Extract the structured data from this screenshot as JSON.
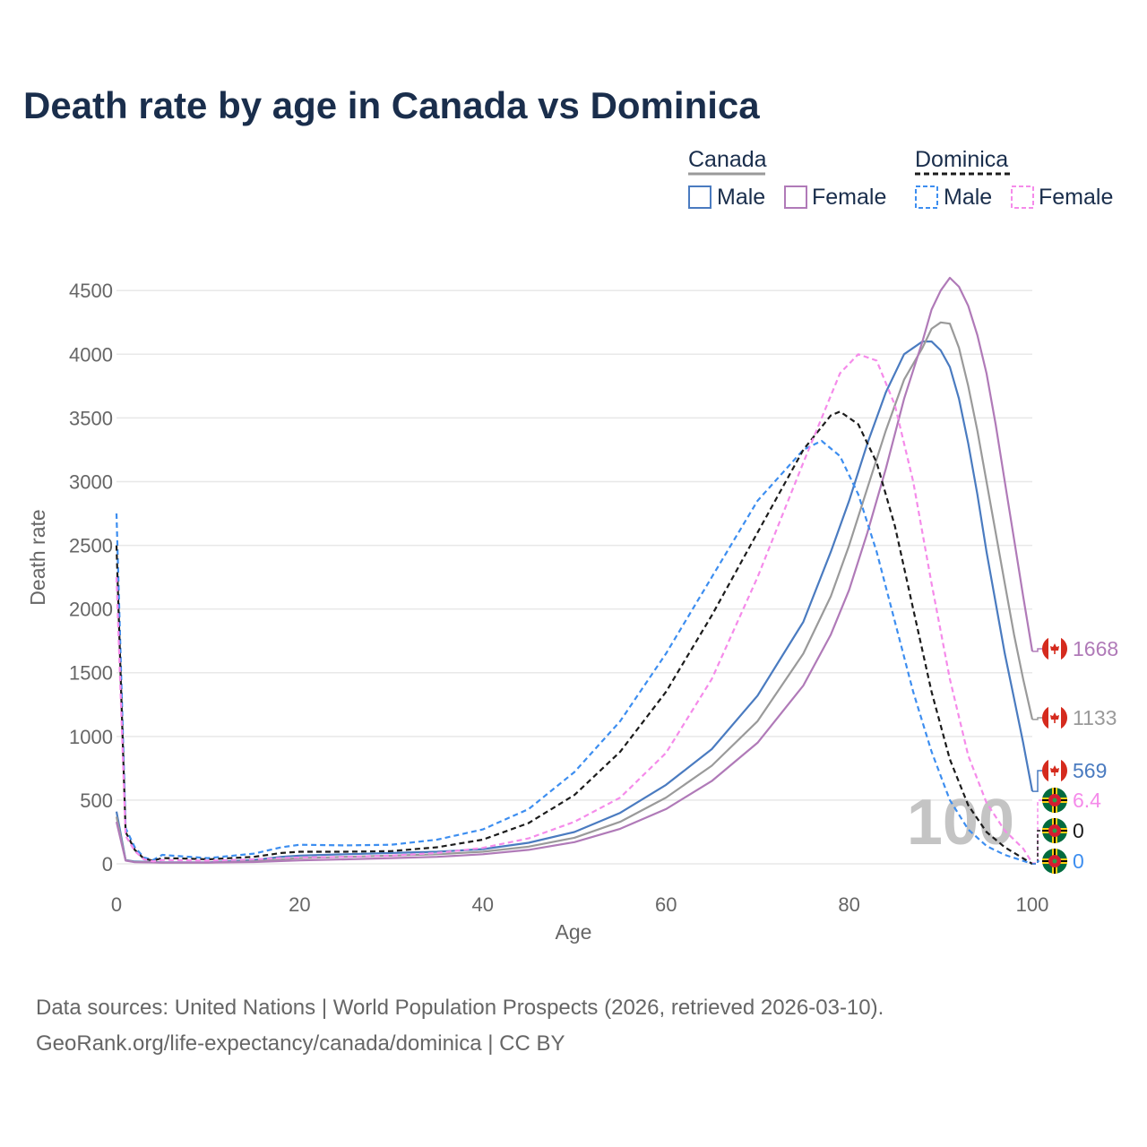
{
  "colors": {
    "canada_male": "#4a7bc0",
    "canada_female": "#b07ab8",
    "canada_total": "#9a9a9a",
    "dominica_male": "#3d8ef0",
    "dominica_female": "#f58bea",
    "dominica_total": "#1c1c1c",
    "grid": "#e8e8e8",
    "title": "#1a2e4c"
  },
  "legend": {
    "canada_label": "Canada",
    "dominica_label": "Dominica",
    "male_label": "Male",
    "female_label": "Female"
  },
  "watermark": "100",
  "source_line1": "Data sources: United Nations | World Population Prospects (2026, retrieved 2026-03-10).",
  "source_line2": "GeoRank.org/life-expectancy/canada/dominica | CC BY",
  "end_labels": [
    {
      "series": "Canada Female",
      "country": "canada",
      "text": "1668",
      "color": "#b07ab8"
    },
    {
      "series": "Canada Total",
      "country": "canada",
      "text": "1133",
      "color": "#9a9a9a"
    },
    {
      "series": "Canada Male",
      "country": "canada",
      "text": "569",
      "color": "#4a7bc0"
    },
    {
      "series": "Dominica Female",
      "country": "dominica",
      "text": "6.4",
      "color": "#f58bea"
    },
    {
      "series": "Dominica Total",
      "country": "dominica",
      "text": "0",
      "color": "#1c1c1c"
    },
    {
      "series": "Dominica Male",
      "country": "dominica",
      "text": "0",
      "color": "#3d8ef0"
    }
  ],
  "chart_data": {
    "type": "line",
    "title": "Death rate by age in Canada vs Dominica",
    "xlabel": "Age",
    "ylabel": "Death rate",
    "xlim": [
      0,
      100
    ],
    "ylim": [
      0,
      4600
    ],
    "x_ticks": [
      0,
      20,
      40,
      60,
      80,
      100
    ],
    "y_ticks": [
      0,
      500,
      1000,
      1500,
      2000,
      2500,
      3000,
      3500,
      4000,
      4500
    ],
    "series": [
      {
        "name": "Canada Male",
        "color": "#4a7bc0",
        "dash": false,
        "points": [
          [
            0,
            410
          ],
          [
            1,
            30
          ],
          [
            2,
            18
          ],
          [
            5,
            12
          ],
          [
            10,
            12
          ],
          [
            15,
            30
          ],
          [
            18,
            55
          ],
          [
            20,
            65
          ],
          [
            25,
            75
          ],
          [
            30,
            85
          ],
          [
            35,
            95
          ],
          [
            40,
            115
          ],
          [
            45,
            165
          ],
          [
            50,
            250
          ],
          [
            55,
            400
          ],
          [
            60,
            620
          ],
          [
            65,
            900
          ],
          [
            70,
            1320
          ],
          [
            75,
            1900
          ],
          [
            78,
            2450
          ],
          [
            80,
            2850
          ],
          [
            82,
            3300
          ],
          [
            84,
            3700
          ],
          [
            86,
            4000
          ],
          [
            88,
            4100
          ],
          [
            89,
            4100
          ],
          [
            90,
            4030
          ],
          [
            91,
            3900
          ],
          [
            92,
            3650
          ],
          [
            93,
            3300
          ],
          [
            94,
            2900
          ],
          [
            95,
            2450
          ],
          [
            96,
            2050
          ],
          [
            97,
            1650
          ],
          [
            98,
            1300
          ],
          [
            99,
            950
          ],
          [
            100,
            569
          ]
        ]
      },
      {
        "name": "Canada Total",
        "color": "#9a9a9a",
        "dash": false,
        "points": [
          [
            0,
            370
          ],
          [
            1,
            28
          ],
          [
            2,
            15
          ],
          [
            5,
            10
          ],
          [
            10,
            10
          ],
          [
            15,
            20
          ],
          [
            18,
            35
          ],
          [
            20,
            45
          ],
          [
            25,
            55
          ],
          [
            30,
            65
          ],
          [
            35,
            75
          ],
          [
            40,
            95
          ],
          [
            45,
            135
          ],
          [
            50,
            205
          ],
          [
            55,
            330
          ],
          [
            60,
            520
          ],
          [
            65,
            770
          ],
          [
            70,
            1120
          ],
          [
            75,
            1650
          ],
          [
            78,
            2100
          ],
          [
            80,
            2500
          ],
          [
            82,
            2950
          ],
          [
            84,
            3400
          ],
          [
            86,
            3800
          ],
          [
            88,
            4050
          ],
          [
            89,
            4200
          ],
          [
            90,
            4250
          ],
          [
            91,
            4240
          ],
          [
            92,
            4050
          ],
          [
            93,
            3750
          ],
          [
            94,
            3400
          ],
          [
            95,
            3000
          ],
          [
            96,
            2600
          ],
          [
            97,
            2200
          ],
          [
            98,
            1800
          ],
          [
            99,
            1450
          ],
          [
            100,
            1133
          ]
        ]
      },
      {
        "name": "Canada Female",
        "color": "#b07ab8",
        "dash": false,
        "points": [
          [
            0,
            330
          ],
          [
            1,
            25
          ],
          [
            2,
            13
          ],
          [
            5,
            9
          ],
          [
            10,
            9
          ],
          [
            15,
            14
          ],
          [
            18,
            22
          ],
          [
            20,
            27
          ],
          [
            25,
            35
          ],
          [
            30,
            45
          ],
          [
            35,
            55
          ],
          [
            40,
            75
          ],
          [
            45,
            110
          ],
          [
            50,
            170
          ],
          [
            55,
            275
          ],
          [
            60,
            430
          ],
          [
            65,
            650
          ],
          [
            70,
            950
          ],
          [
            75,
            1400
          ],
          [
            78,
            1800
          ],
          [
            80,
            2150
          ],
          [
            82,
            2600
          ],
          [
            84,
            3100
          ],
          [
            86,
            3650
          ],
          [
            88,
            4100
          ],
          [
            89,
            4350
          ],
          [
            90,
            4500
          ],
          [
            91,
            4600
          ],
          [
            92,
            4530
          ],
          [
            93,
            4380
          ],
          [
            94,
            4150
          ],
          [
            95,
            3850
          ],
          [
            96,
            3450
          ],
          [
            97,
            3000
          ],
          [
            98,
            2550
          ],
          [
            99,
            2100
          ],
          [
            100,
            1668
          ]
        ]
      },
      {
        "name": "Dominica Male",
        "color": "#3d8ef0",
        "dash": true,
        "points": [
          [
            0,
            2750
          ],
          [
            1,
            280
          ],
          [
            2,
            130
          ],
          [
            3,
            50
          ],
          [
            4,
            30
          ],
          [
            5,
            70
          ],
          [
            7,
            60
          ],
          [
            10,
            45
          ],
          [
            15,
            80
          ],
          [
            18,
            130
          ],
          [
            20,
            150
          ],
          [
            25,
            145
          ],
          [
            30,
            150
          ],
          [
            35,
            190
          ],
          [
            40,
            270
          ],
          [
            45,
            430
          ],
          [
            50,
            720
          ],
          [
            55,
            1120
          ],
          [
            60,
            1650
          ],
          [
            65,
            2250
          ],
          [
            70,
            2850
          ],
          [
            75,
            3250
          ],
          [
            77,
            3320
          ],
          [
            79,
            3200
          ],
          [
            81,
            2900
          ],
          [
            83,
            2450
          ],
          [
            85,
            1900
          ],
          [
            87,
            1350
          ],
          [
            89,
            880
          ],
          [
            91,
            500
          ],
          [
            93,
            270
          ],
          [
            95,
            140
          ],
          [
            97,
            70
          ],
          [
            100,
            0
          ]
        ]
      },
      {
        "name": "Dominica Total",
        "color": "#1c1c1c",
        "dash": true,
        "points": [
          [
            0,
            2500
          ],
          [
            1,
            250
          ],
          [
            2,
            110
          ],
          [
            3,
            40
          ],
          [
            4,
            25
          ],
          [
            5,
            45
          ],
          [
            7,
            42
          ],
          [
            10,
            35
          ],
          [
            15,
            55
          ],
          [
            18,
            85
          ],
          [
            20,
            95
          ],
          [
            25,
            95
          ],
          [
            30,
            100
          ],
          [
            35,
            130
          ],
          [
            40,
            190
          ],
          [
            45,
            320
          ],
          [
            50,
            540
          ],
          [
            55,
            880
          ],
          [
            60,
            1350
          ],
          [
            65,
            1950
          ],
          [
            70,
            2600
          ],
          [
            75,
            3250
          ],
          [
            78,
            3520
          ],
          [
            79,
            3550
          ],
          [
            81,
            3450
          ],
          [
            83,
            3150
          ],
          [
            85,
            2650
          ],
          [
            87,
            2000
          ],
          [
            89,
            1350
          ],
          [
            91,
            820
          ],
          [
            93,
            460
          ],
          [
            95,
            250
          ],
          [
            97,
            130
          ],
          [
            100,
            0
          ]
        ]
      },
      {
        "name": "Dominica Female",
        "color": "#f58bea",
        "dash": true,
        "points": [
          [
            0,
            2250
          ],
          [
            1,
            220
          ],
          [
            2,
            100
          ],
          [
            3,
            35
          ],
          [
            4,
            20
          ],
          [
            5,
            30
          ],
          [
            7,
            28
          ],
          [
            10,
            25
          ],
          [
            15,
            35
          ],
          [
            18,
            45
          ],
          [
            20,
            50
          ],
          [
            25,
            55
          ],
          [
            30,
            65
          ],
          [
            35,
            85
          ],
          [
            40,
            125
          ],
          [
            45,
            200
          ],
          [
            50,
            330
          ],
          [
            55,
            520
          ],
          [
            60,
            870
          ],
          [
            65,
            1450
          ],
          [
            70,
            2250
          ],
          [
            75,
            3150
          ],
          [
            79,
            3850
          ],
          [
            81,
            4000
          ],
          [
            83,
            3950
          ],
          [
            85,
            3600
          ],
          [
            87,
            3000
          ],
          [
            89,
            2200
          ],
          [
            91,
            1450
          ],
          [
            93,
            850
          ],
          [
            95,
            480
          ],
          [
            97,
            260
          ],
          [
            99,
            120
          ],
          [
            100,
            6.4
          ]
        ]
      }
    ]
  }
}
